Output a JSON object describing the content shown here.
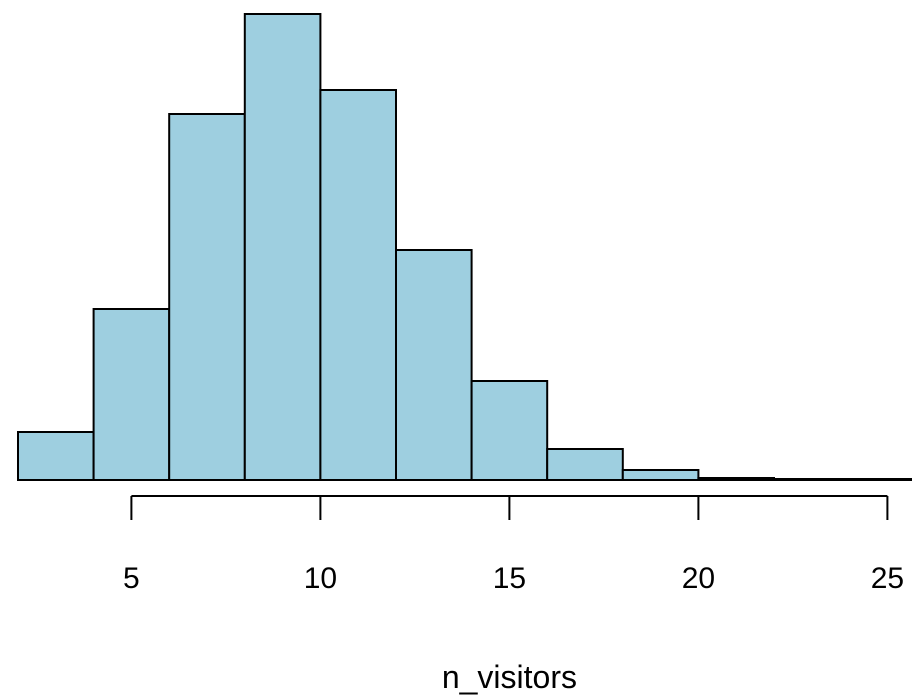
{
  "chart_data": {
    "type": "histogram",
    "title": "",
    "xlabel": "n_visitors",
    "ylabel": "",
    "bins": [
      {
        "x0": 2,
        "x1": 4,
        "count": 48
      },
      {
        "x0": 4,
        "x1": 6,
        "count": 171
      },
      {
        "x0": 6,
        "x1": 8,
        "count": 366
      },
      {
        "x0": 8,
        "x1": 10,
        "count": 466
      },
      {
        "x0": 10,
        "x1": 12,
        "count": 390
      },
      {
        "x0": 12,
        "x1": 14,
        "count": 230
      },
      {
        "x0": 14,
        "x1": 16,
        "count": 99
      },
      {
        "x0": 16,
        "x1": 18,
        "count": 31
      },
      {
        "x0": 18,
        "x1": 20,
        "count": 10
      },
      {
        "x0": 20,
        "x1": 22,
        "count": 2
      },
      {
        "x0": 22,
        "x1": 24,
        "count": 1
      },
      {
        "x0": 24,
        "x1": 26,
        "count": 1
      }
    ],
    "x_ticks": [
      "5",
      "10",
      "15",
      "20",
      "25"
    ],
    "x_tick_values": [
      5,
      10,
      15,
      20,
      25
    ],
    "xlim": [
      2,
      26
    ],
    "ylim": [
      0,
      466
    ],
    "bar_color": "#9ecfe0",
    "edge_color": "#000000",
    "grid": false,
    "legend": "none"
  }
}
